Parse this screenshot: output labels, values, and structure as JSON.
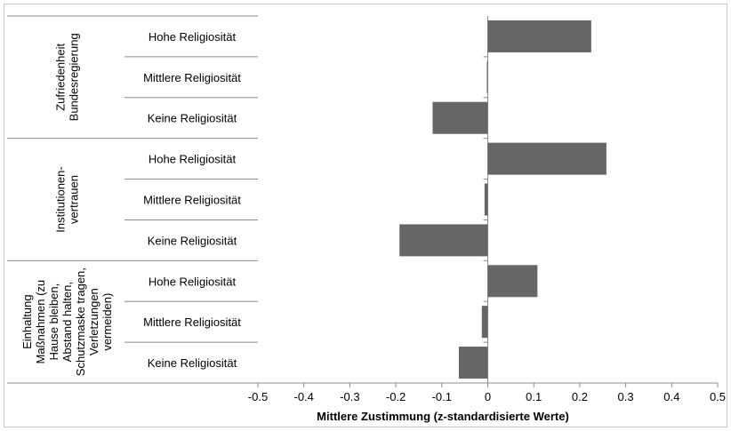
{
  "chart_data": {
    "type": "bar",
    "orientation": "horizontal",
    "xlabel": "Mittlere Zustimmung (z-standardisierte Werte)",
    "xlim": [
      -0.5,
      0.5
    ],
    "xticks": [
      "-0.5",
      "-0.4",
      "-0.3",
      "-0.2",
      "-0.1",
      "0",
      "0.1",
      "0.2",
      "0.3",
      "0.4",
      "0.5"
    ],
    "groups": [
      {
        "label": [
          "Zufriedenheit",
          "Bundesregierung"
        ],
        "categories": [
          "Hohe Religiosität",
          "Mittlere Religiosität",
          "Keine Religiosität"
        ],
        "values": [
          0.225,
          -0.002,
          -0.12
        ]
      },
      {
        "label": [
          "Institutionen-",
          "vertrauen"
        ],
        "categories": [
          "Hohe Religiosität",
          "Mittlere Religiosität",
          "Keine Religiosität"
        ],
        "values": [
          0.258,
          -0.007,
          -0.192
        ]
      },
      {
        "label": [
          "Einhaltung",
          "Maßnahmen (zu",
          "Hause bleiben,",
          "Abstand halten,",
          "Schutzmaske tragen,",
          "Verletzungen",
          "vermeiden)"
        ],
        "categories": [
          "Hohe Religiosität",
          "Mittlere Religiosität",
          "Keine Religiosität"
        ],
        "values": [
          0.108,
          -0.013,
          -0.063
        ]
      }
    ],
    "colors": {
      "bar": "#666666",
      "axis": "#8c8c8c",
      "border": "#c8c8c8"
    },
    "grid": false,
    "legend": "none"
  }
}
